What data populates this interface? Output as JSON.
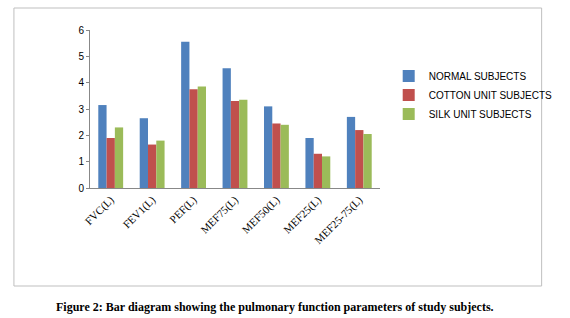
{
  "chart_data": {
    "type": "bar",
    "title": "Figure 2: Bar diagram showing the pulmonary function parameters of study subjects.",
    "categories": [
      "FVC(L)",
      "FEV1(L)",
      "PEF(L)",
      "MEF75(L)",
      "MEF50(L)",
      "MEF25(L)",
      "MEF25-75(L)"
    ],
    "series": [
      {
        "name": "NORMAL SUBJECTS",
        "color": "#4f81bd",
        "values": [
          3.15,
          2.65,
          5.55,
          4.55,
          3.1,
          1.9,
          2.7
        ]
      },
      {
        "name": "COTTON UNIT SUBJECTS",
        "color": "#c0504d",
        "values": [
          1.9,
          1.65,
          3.75,
          3.3,
          2.45,
          1.3,
          2.2
        ]
      },
      {
        "name": "SILK UNIT SUBJECTS",
        "color": "#9bbb59",
        "values": [
          2.3,
          1.8,
          3.85,
          3.35,
          2.4,
          1.2,
          2.05
        ]
      }
    ],
    "ylim": [
      0,
      6
    ],
    "yticks": [
      0,
      1,
      2,
      3,
      4,
      5,
      6
    ],
    "grid": false,
    "legend": "right"
  }
}
